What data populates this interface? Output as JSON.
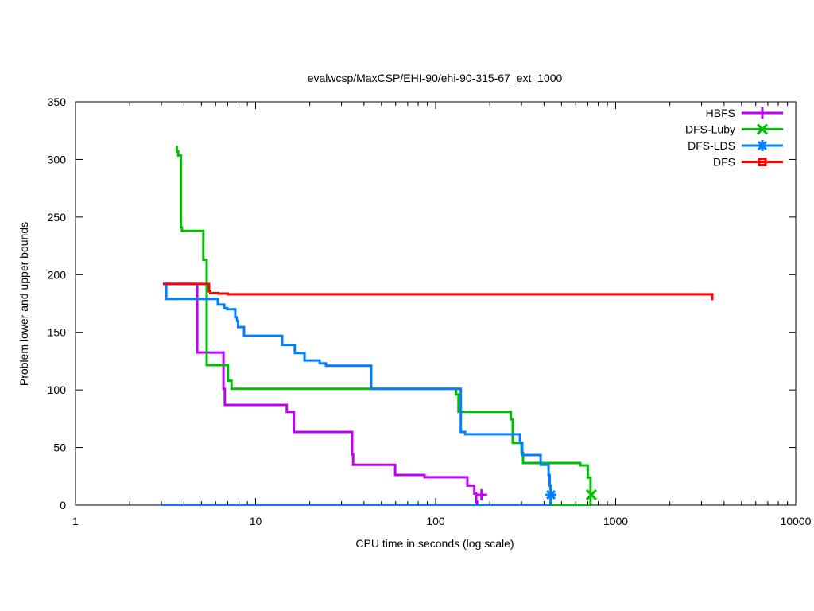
{
  "chart_data": {
    "type": "line",
    "title": "evalwcsp/MaxCSP/EHI-90/ehi-90-315-67_ext_1000",
    "xlabel": "CPU time in seconds (log scale)",
    "ylabel": "Problem lower and upper bounds",
    "xscale": "log",
    "xlim": [
      1,
      10000
    ],
    "ylim": [
      0,
      350
    ],
    "xticks": [
      1,
      10,
      100,
      1000,
      10000
    ],
    "xtick_labels": [
      "1",
      "10",
      "100",
      "1000",
      "10000"
    ],
    "yticks": [
      0,
      50,
      100,
      150,
      200,
      250,
      300,
      350
    ],
    "ytick_labels": [
      "0",
      "50",
      "100",
      "150",
      "200",
      "250",
      "300",
      "350"
    ],
    "grid": false,
    "legend_position": "top-right",
    "series": [
      {
        "name": "HBFS",
        "color": "#bf00ff",
        "marker": "plus",
        "upper": [
          [
            3.06,
            192
          ],
          [
            4.74,
            132.5
          ],
          [
            6.63,
            101
          ],
          [
            6.75,
            87
          ],
          [
            14.9,
            81
          ],
          [
            16.3,
            63.5
          ],
          [
            34.4,
            44
          ],
          [
            34.8,
            35
          ],
          [
            59.6,
            26.2
          ],
          [
            86.7,
            24.2
          ],
          [
            150,
            17
          ],
          [
            164,
            10
          ],
          [
            168,
            3
          ],
          [
            170,
            0
          ]
        ],
        "lower": [
          [
            3.0,
            0
          ],
          [
            170,
            0
          ]
        ],
        "end": [
          180,
          9
        ]
      },
      {
        "name": "DFS-Luby",
        "color": "#00bf00",
        "marker": "cross",
        "upper": [
          [
            3.6,
            311
          ],
          [
            3.65,
            307
          ],
          [
            3.72,
            303.5
          ],
          [
            3.85,
            241
          ],
          [
            3.9,
            238
          ],
          [
            5.13,
            213
          ],
          [
            5.35,
            121.5
          ],
          [
            7.03,
            108
          ],
          [
            7.35,
            101
          ],
          [
            130,
            96
          ],
          [
            134,
            81
          ],
          [
            262,
            74.5
          ],
          [
            268,
            54
          ],
          [
            300,
            45.5
          ],
          [
            306,
            36.6
          ],
          [
            636,
            34.5
          ],
          [
            700,
            24
          ],
          [
            725,
            0
          ]
        ],
        "lower": [
          [
            3.6,
            0
          ],
          [
            733,
            0
          ]
        ],
        "end": [
          733,
          9
        ]
      },
      {
        "name": "DFS-LDS",
        "color": "#0080ff",
        "marker": "star",
        "upper": [
          [
            3.06,
            192
          ],
          [
            3.19,
            179
          ],
          [
            6.17,
            174
          ],
          [
            6.7,
            171
          ],
          [
            6.95,
            170
          ],
          [
            7.71,
            163
          ],
          [
            7.9,
            160
          ],
          [
            8.0,
            154.6
          ],
          [
            8.63,
            147
          ],
          [
            14.06,
            139
          ],
          [
            16.5,
            132
          ],
          [
            18.7,
            125.6
          ],
          [
            22.7,
            123
          ],
          [
            24.6,
            121
          ],
          [
            43.9,
            101
          ],
          [
            138,
            63.5
          ],
          [
            146,
            61.5
          ],
          [
            294,
            54
          ],
          [
            303,
            43.5
          ],
          [
            383,
            35
          ],
          [
            424,
            26
          ],
          [
            430,
            17
          ],
          [
            435,
            0
          ]
        ],
        "lower": [
          [
            3.0,
            0
          ],
          [
            437,
            0
          ]
        ],
        "end": [
          437,
          9
        ]
      },
      {
        "name": "DFS",
        "color": "#ff0000",
        "marker": "square",
        "upper": [
          [
            3.06,
            192
          ],
          [
            5.52,
            185.7
          ],
          [
            5.6,
            184
          ],
          [
            6.2,
            183.6
          ],
          [
            7.03,
            183
          ],
          [
            3440,
            178
          ]
        ],
        "lower": [],
        "end": null
      }
    ]
  }
}
